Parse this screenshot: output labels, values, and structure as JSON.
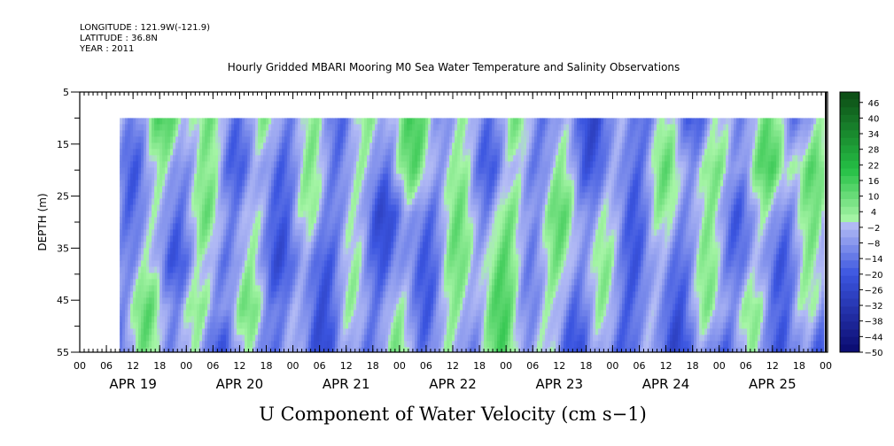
{
  "header": {
    "longitude": "LONGITUDE : 121.9W(-121.9)",
    "latitude": "LATITUDE : 36.8N",
    "year": "YEAR : 2011"
  },
  "chart_data": {
    "type": "heatmap",
    "title": "Hourly Gridded MBARI Mooring M0 Sea Water Temperature and Salinity Observations",
    "xlabel": "U Component of Water Velocity (cm s−1)",
    "ylabel": "DEPTH (m)",
    "x_tick_labels": [
      "00",
      "06",
      "12",
      "18",
      "00",
      "06",
      "12",
      "18",
      "00",
      "06",
      "12",
      "18",
      "00",
      "06",
      "12",
      "18",
      "00",
      "06",
      "12",
      "18",
      "00",
      "06",
      "12",
      "18",
      "00",
      "06",
      "12",
      "18",
      "00"
    ],
    "date_labels": [
      "APR 19",
      "APR 20",
      "APR 21",
      "APR 22",
      "APR 23",
      "APR 24",
      "APR 25"
    ],
    "y_ticks": [
      5,
      15,
      25,
      35,
      45,
      55
    ],
    "ylim": [
      55,
      5
    ],
    "data_depth_range": [
      10,
      55
    ],
    "colorbar": {
      "labels": [
        "46",
        "40",
        "34",
        "28",
        "22",
        "16",
        "10",
        "4",
        "−2",
        "−8",
        "−14",
        "−20",
        "−26",
        "−32",
        "−38",
        "−44",
        "−50"
      ],
      "min": -50,
      "max": 50,
      "colors": {
        "lowest": "#0a0a6e",
        "low": "#3b55e0",
        "near_zero_negative": "#b4bcf5",
        "near_zero_positive": "#a6f5a6",
        "high": "#25c045",
        "highest": "#0c4a14"
      }
    },
    "day_columns": [
      {
        "day": "APR 19",
        "profile": [
          -6,
          -5,
          -7,
          -6,
          -8,
          -5
        ]
      },
      {
        "day": "APR 20",
        "profile": [
          4,
          -6,
          -4,
          -8,
          3,
          -6
        ]
      },
      {
        "day": "APR 21",
        "profile": [
          -8,
          -10,
          -6,
          -12,
          -9,
          -14
        ]
      },
      {
        "day": "APR 22",
        "profile": [
          3,
          1,
          -14,
          -12,
          -8,
          -6
        ]
      },
      {
        "day": "APR 23",
        "profile": [
          -5,
          -8,
          4,
          5,
          3,
          1
        ]
      },
      {
        "day": "APR 24",
        "profile": [
          -14,
          -10,
          -6,
          -8,
          -12,
          -16
        ]
      },
      {
        "day": "APR 25",
        "profile": [
          -4,
          4,
          -6,
          -8,
          -4,
          -12
        ]
      }
    ]
  }
}
